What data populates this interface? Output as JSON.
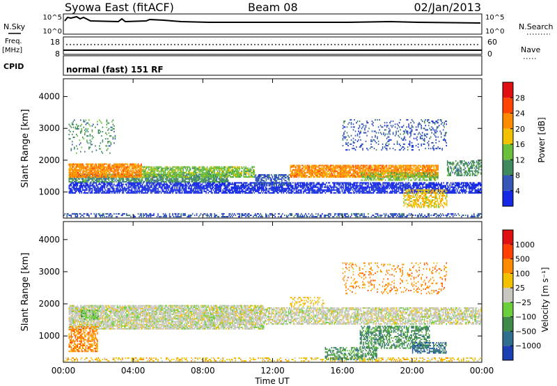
{
  "header": {
    "title": "Syowa East (fitACF)",
    "beam": "Beam 08",
    "date": "02/Jan/2013"
  },
  "status_panels": {
    "nsky_label": "N.Sky",
    "nsky_ticks": [
      "10^5",
      "10^0"
    ],
    "nsearch_label": "N.Search",
    "nsearch_ticks": [
      "10^5",
      "10^0"
    ],
    "freq_label": "Freq.",
    "freq_unit": "[MHz]",
    "freq_ticks": [
      "18",
      "8"
    ],
    "nave_label": "Nave",
    "nave_ticks": [
      "60",
      "0"
    ],
    "cpid_label": "CPID",
    "cpid_text": "normal (fast) 151 RF"
  },
  "chart_data": [
    {
      "type": "heatmap",
      "parameter": "Power",
      "ylabel": "Slant Range [km]",
      "yticks": [
        "1000",
        "2000",
        "3000",
        "4000"
      ],
      "ylim": [
        180,
        4560
      ],
      "xlim_hours": [
        0,
        24
      ],
      "xticks": [
        "00:00",
        "04:00",
        "08:00",
        "12:00",
        "16:00",
        "20:00",
        "00:00"
      ],
      "colorbar": {
        "label": "Power [dB]",
        "ticks": [
          "4",
          "8",
          "12",
          "16",
          "20",
          "24",
          "28"
        ],
        "colors": [
          "#1428e6",
          "#3557b5",
          "#3f8a5c",
          "#6abf3b",
          "#f2c200",
          "#ff8c00",
          "#ff4500",
          "#e01010"
        ]
      },
      "bands": [
        {
          "t0": 0,
          "t1": 24,
          "r0": 200,
          "r1": 350,
          "level": 1,
          "density": 0.45
        },
        {
          "t0": 0.3,
          "t1": 24,
          "r0": 950,
          "r1": 1300,
          "level": 0,
          "density": 0.75
        },
        {
          "t0": 0.3,
          "t1": 9.5,
          "r0": 1300,
          "r1": 1550,
          "level": 2,
          "density": 0.8
        },
        {
          "t0": 0.3,
          "t1": 4.5,
          "r0": 1450,
          "r1": 1900,
          "level": 5,
          "density": 0.85
        },
        {
          "t0": 4.5,
          "t1": 11,
          "r0": 1450,
          "r1": 1800,
          "level": 3,
          "density": 0.75
        },
        {
          "t0": 11,
          "t1": 13,
          "r0": 1200,
          "r1": 1550,
          "level": 1,
          "density": 0.6
        },
        {
          "t0": 13,
          "t1": 21.5,
          "r0": 1450,
          "r1": 1850,
          "level": 5,
          "density": 0.85
        },
        {
          "t0": 17,
          "t1": 21.5,
          "r0": 1350,
          "r1": 1600,
          "level": 3,
          "density": 0.6
        },
        {
          "t0": 16,
          "t1": 22,
          "r0": 2300,
          "r1": 3300,
          "level": 1,
          "density": 0.2
        },
        {
          "t0": 19.5,
          "t1": 22,
          "r0": 500,
          "r1": 1100,
          "level": 4,
          "density": 0.55
        },
        {
          "t0": 22,
          "t1": 24,
          "r0": 1500,
          "r1": 2000,
          "level": 2,
          "density": 0.5
        },
        {
          "t0": 0.3,
          "t1": 3,
          "r0": 2200,
          "r1": 3300,
          "level": 2,
          "density": 0.15
        }
      ]
    },
    {
      "type": "heatmap",
      "parameter": "Velocity",
      "ylabel": "Slant Range [km]",
      "yticks": [
        "1000",
        "2000",
        "3000",
        "4000"
      ],
      "ylim": [
        180,
        4560
      ],
      "xlim_hours": [
        0,
        24
      ],
      "xticks": [
        "00:00",
        "04:00",
        "08:00",
        "12:00",
        "16:00",
        "20:00",
        "00:00"
      ],
      "xlabel": "Time UT",
      "colorbar": {
        "label": "Velocity [m s⁻¹]",
        "ticks": [
          "1000",
          "500",
          "100",
          "25",
          "−25",
          "−100",
          "−500",
          "−1000"
        ],
        "colors": [
          "#1b3fb0",
          "#2f6e8c",
          "#3f8a4a",
          "#6bcf3b",
          "#c8c8c0",
          "#f2c200",
          "#ff8c00",
          "#ff4000",
          "#e01010"
        ]
      },
      "bands": [
        {
          "t0": 0.3,
          "t1": 11.5,
          "r0": 1200,
          "r1": 1950,
          "level": 4,
          "density": 0.85
        },
        {
          "t0": 11.5,
          "t1": 24,
          "r0": 1350,
          "r1": 1900,
          "level": 4,
          "density": 0.7
        },
        {
          "t0": 0.3,
          "t1": 2,
          "r0": 500,
          "r1": 1300,
          "level": 6,
          "density": 0.6
        },
        {
          "t0": 1,
          "t1": 2,
          "r0": 1500,
          "r1": 1800,
          "level": 3,
          "density": 0.7
        },
        {
          "t0": 0,
          "t1": 24,
          "r0": 200,
          "r1": 350,
          "level": 5,
          "density": 0.35
        },
        {
          "t0": 15,
          "t1": 18,
          "r0": 250,
          "r1": 650,
          "level": 2,
          "density": 0.5
        },
        {
          "t0": 17,
          "t1": 21,
          "r0": 600,
          "r1": 1300,
          "level": 2,
          "density": 0.55
        },
        {
          "t0": 20,
          "t1": 22,
          "r0": 450,
          "r1": 800,
          "level": 1,
          "density": 0.5
        },
        {
          "t0": 16,
          "t1": 22,
          "r0": 2300,
          "r1": 3300,
          "level": 6,
          "density": 0.15
        },
        {
          "t0": 13,
          "t1": 15,
          "r0": 1900,
          "r1": 2200,
          "level": 5,
          "density": 0.35
        }
      ]
    }
  ]
}
